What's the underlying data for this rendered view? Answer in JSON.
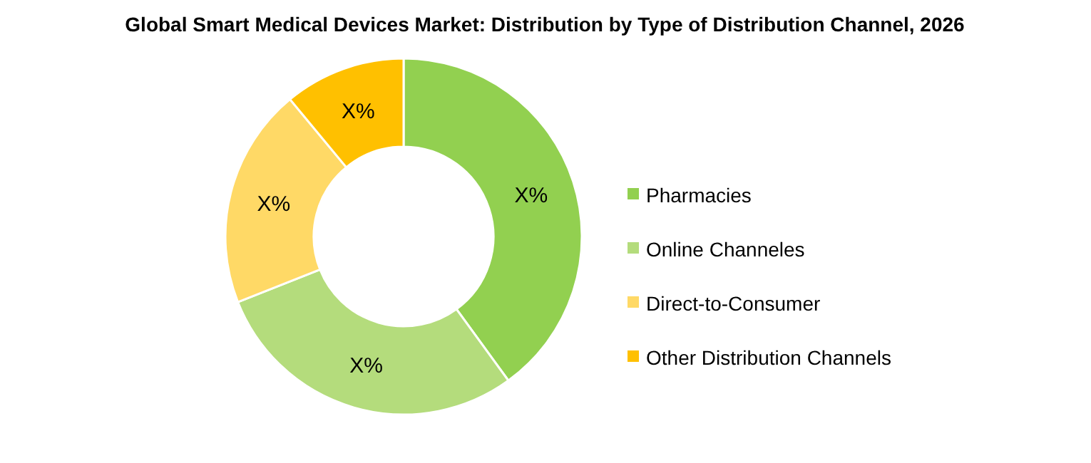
{
  "chart_data": {
    "type": "donut",
    "title": "Global Smart Medical Devices Market: Distribution by Type of Distribution Channel, 2026",
    "categories": [
      "Pharmacies",
      "Online Channeles",
      "Direct-to-Consumer",
      "Other Distribution Channels"
    ],
    "values": [
      40,
      29,
      20,
      11
    ],
    "colors": [
      "#92d050",
      "#b4dc7c",
      "#ffd966",
      "#ffc000"
    ],
    "value_labels": [
      "X%",
      "X%",
      "X%",
      "X%"
    ],
    "legend": "right"
  }
}
